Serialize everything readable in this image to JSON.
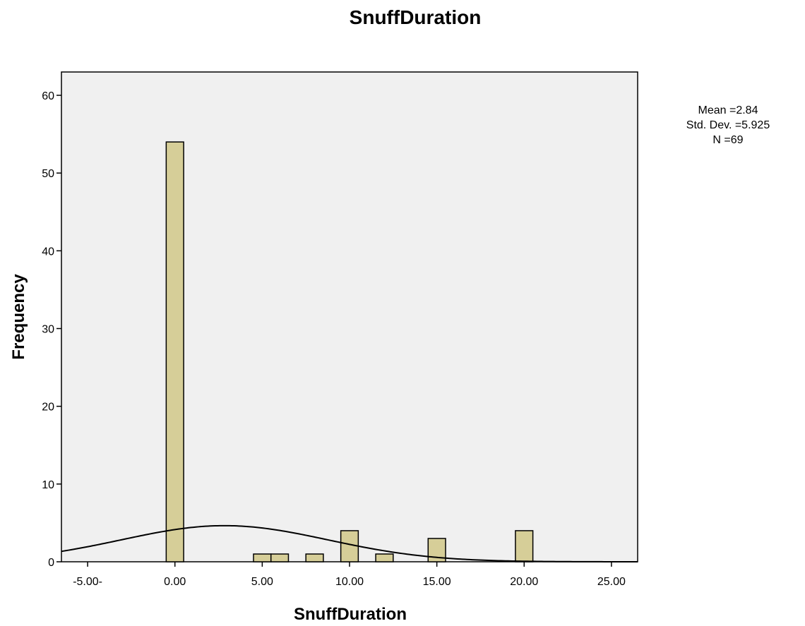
{
  "chart_data": {
    "type": "histogram",
    "title": "SnuffDuration",
    "xlabel": "SnuffDuration",
    "ylabel": "Frequency",
    "xlim": [
      -6.5,
      26.5
    ],
    "ylim": [
      0,
      63
    ],
    "x_ticks": [
      -5,
      0,
      5,
      10,
      15,
      20,
      25
    ],
    "x_tick_labels": [
      "-5.00-",
      "0.00",
      "5.00",
      "10.00",
      "15.00",
      "20.00",
      "25.00"
    ],
    "y_ticks": [
      0,
      10,
      20,
      30,
      40,
      50,
      60
    ],
    "y_tick_labels": [
      "0",
      "10",
      "20",
      "30",
      "40",
      "50",
      "60"
    ],
    "bin_width": 1,
    "bins": [
      {
        "x": 0,
        "count": 54
      },
      {
        "x": 5,
        "count": 1
      },
      {
        "x": 6,
        "count": 1
      },
      {
        "x": 8,
        "count": 1
      },
      {
        "x": 10,
        "count": 4
      },
      {
        "x": 12,
        "count": 1
      },
      {
        "x": 15,
        "count": 3
      },
      {
        "x": 20,
        "count": 4
      }
    ],
    "normal_curve": {
      "mean": 2.84,
      "sd": 5.925,
      "n": 69
    },
    "stats": {
      "mean_label": "Mean =2.84",
      "sd_label": "Std. Dev. =5.925",
      "n_label": "N =69"
    },
    "colors": {
      "bar_fill": "#d6ce98",
      "bar_stroke": "#000000",
      "plot_background": "#f0f0f0",
      "curve": "#000000"
    },
    "grid": false
  }
}
